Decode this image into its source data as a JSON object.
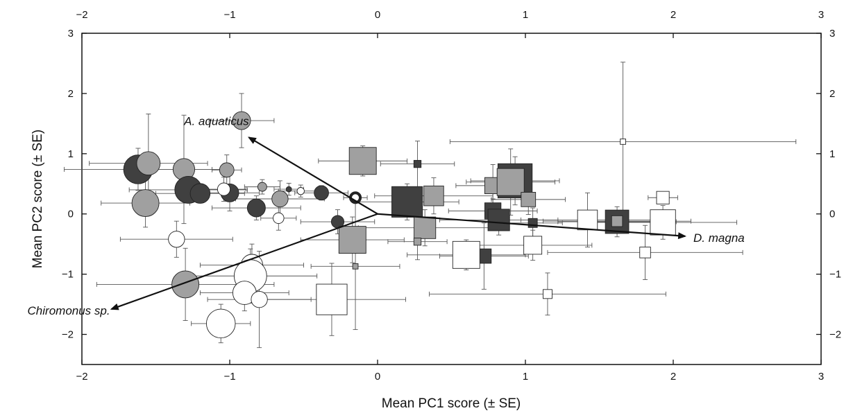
{
  "chart_data": {
    "type": "scatter",
    "xlabel": "Mean PC1 score (± SE)",
    "ylabel": "Mean PC2 score (± SE)",
    "xlim": [
      -2,
      3
    ],
    "ylim": [
      -2.5,
      3
    ],
    "x_ticks": [
      -2,
      -1,
      0,
      1,
      2,
      3
    ],
    "y_ticks": [
      -2,
      -1,
      0,
      1,
      2,
      3
    ],
    "x_tick_labels": [
      "−2",
      "−1",
      "0",
      "1",
      "2",
      "3"
    ],
    "y_tick_labels": [
      "−2",
      "−1",
      "0",
      "1",
      "2",
      "3"
    ],
    "grid": false,
    "colors": {
      "dark": "#404040",
      "grey": "#a0a0a0",
      "white": "#ffffff",
      "stroke": "#222222"
    },
    "vectors": [
      {
        "label": "A. aquaticus",
        "x": -0.87,
        "y": 1.27
      },
      {
        "label": "Chiromonus sp.",
        "x": -1.8,
        "y": -1.58
      },
      {
        "label": "D. magna",
        "x": 2.08,
        "y": -0.37
      }
    ],
    "points": [
      {
        "shape": "circle",
        "fill": "grey",
        "x": -0.92,
        "y": 1.55,
        "size": 0.5,
        "xerr": 0.22,
        "yerr": 0.45
      },
      {
        "shape": "circle",
        "fill": "dark",
        "x": -1.62,
        "y": 0.74,
        "size": 0.8,
        "xerr": 0.5,
        "yerr": 0.35
      },
      {
        "shape": "circle",
        "fill": "grey",
        "x": -1.55,
        "y": 0.84,
        "size": 0.65,
        "xerr": 0.4,
        "yerr": 0.82
      },
      {
        "shape": "circle",
        "fill": "grey",
        "x": -1.31,
        "y": 0.74,
        "size": 0.6,
        "xerr": 0.25,
        "yerr": 0.9
      },
      {
        "shape": "circle",
        "fill": "grey",
        "x": -1.02,
        "y": 0.73,
        "size": 0.4,
        "xerr": 0.1,
        "yerr": 0.25
      },
      {
        "shape": "circle",
        "fill": "grey",
        "x": -1.57,
        "y": 0.18,
        "size": 0.75,
        "xerr": 0.3,
        "yerr": 0.4
      },
      {
        "shape": "circle",
        "fill": "dark",
        "x": -1.28,
        "y": 0.4,
        "size": 0.75,
        "xerr": 0.4,
        "yerr": 0.2
      },
      {
        "shape": "circle",
        "fill": "dark",
        "x": -1.2,
        "y": 0.34,
        "size": 0.55,
        "xerr": 0.3,
        "yerr": 0.15
      },
      {
        "shape": "circle",
        "fill": "dark",
        "x": -1.0,
        "y": 0.35,
        "size": 0.5,
        "xerr": 0.2,
        "yerr": 0.3
      },
      {
        "shape": "circle",
        "fill": "white",
        "x": -1.04,
        "y": 0.41,
        "size": 0.35,
        "xerr": 0.15,
        "yerr": 0.2
      },
      {
        "shape": "circle",
        "fill": "grey",
        "x": -0.78,
        "y": 0.45,
        "size": 0.25,
        "xerr": 0.12,
        "yerr": 0.12
      },
      {
        "shape": "circle",
        "fill": "dark",
        "x": -0.6,
        "y": 0.41,
        "size": 0.15,
        "xerr": 0.1,
        "yerr": 0.1
      },
      {
        "shape": "circle",
        "fill": "white",
        "x": -0.52,
        "y": 0.38,
        "size": 0.2,
        "xerr": 0.15,
        "yerr": 0.1
      },
      {
        "shape": "circle",
        "fill": "dark",
        "x": -0.38,
        "y": 0.35,
        "size": 0.4,
        "xerr": 0.18,
        "yerr": 0.12
      },
      {
        "shape": "circle",
        "fill": "grey",
        "x": -0.66,
        "y": 0.25,
        "size": 0.45,
        "xerr": 0.3,
        "yerr": 0.3
      },
      {
        "shape": "circle",
        "fill": "dark",
        "x": -0.82,
        "y": 0.1,
        "size": 0.5,
        "xerr": 0.3,
        "yerr": 0.2
      },
      {
        "shape": "circle",
        "fill": "white",
        "x": -0.67,
        "y": -0.07,
        "size": 0.3,
        "xerr": 0.12,
        "yerr": 0.2
      },
      {
        "shape": "circle",
        "fill": "dark",
        "x": -0.27,
        "y": -0.13,
        "size": 0.35,
        "xerr": 0.25,
        "yerr": 0.2
      },
      {
        "shape": "circle",
        "fill": "white",
        "x": -0.15,
        "y": 0.27,
        "size": 0.27,
        "ring": true,
        "xerr": 0.08,
        "yerr": 0.08
      },
      {
        "shape": "circle",
        "fill": "white",
        "x": -1.36,
        "y": -0.42,
        "size": 0.45,
        "xerr": 0.38,
        "yerr": 0.3
      },
      {
        "shape": "circle",
        "fill": "white",
        "x": -0.85,
        "y": -0.85,
        "size": 0.6,
        "xerr": 0.35,
        "yerr": 0.35
      },
      {
        "shape": "circle",
        "fill": "grey",
        "x": -1.3,
        "y": -1.17,
        "size": 0.75,
        "xerr": 0.6,
        "yerr": 0.6
      },
      {
        "shape": "circle",
        "fill": "white",
        "x": -0.86,
        "y": -1.03,
        "size": 0.9,
        "xerr": 0.45,
        "yerr": 0.45
      },
      {
        "shape": "circle",
        "fill": "white",
        "x": -0.9,
        "y": -1.31,
        "size": 0.65,
        "xerr": 0.3,
        "yerr": 0.3
      },
      {
        "shape": "circle",
        "fill": "white",
        "x": -0.8,
        "y": -1.42,
        "size": 0.45,
        "xerr": 0.35,
        "yerr": 0.8
      },
      {
        "shape": "circle",
        "fill": "white",
        "x": -1.06,
        "y": -1.82,
        "size": 0.8,
        "xerr": 0.2,
        "yerr": 0.32
      },
      {
        "shape": "square",
        "fill": "grey",
        "x": -0.1,
        "y": 0.88,
        "size": 0.75,
        "xerr": 0.3,
        "yerr": 0.25
      },
      {
        "shape": "square",
        "fill": "dark",
        "x": 0.27,
        "y": 0.83,
        "size": 0.2,
        "xerr": 0.25,
        "yerr": 0.38
      },
      {
        "shape": "square",
        "fill": "dark",
        "x": 0.2,
        "y": 0.2,
        "size": 0.85,
        "xerr": 0.35,
        "yerr": 0.3
      },
      {
        "shape": "square",
        "fill": "grey",
        "x": 0.38,
        "y": 0.3,
        "size": 0.55,
        "xerr": 0.4,
        "yerr": 0.3
      },
      {
        "shape": "square",
        "fill": "grey",
        "x": 0.32,
        "y": -0.23,
        "size": 0.6,
        "xerr": 0.45,
        "yerr": 0.3
      },
      {
        "shape": "square",
        "fill": "grey",
        "x": -0.17,
        "y": -0.43,
        "size": 0.75,
        "xerr": 0.35,
        "yerr": 0.38
      },
      {
        "shape": "square",
        "fill": "grey",
        "x": 0.27,
        "y": -0.46,
        "size": 0.2,
        "xerr": 0.2,
        "yerr": 0.3
      },
      {
        "shape": "square",
        "fill": "grey",
        "x": -0.15,
        "y": -0.87,
        "size": 0.15,
        "xerr": 0.3,
        "yerr": 1.05
      },
      {
        "shape": "square",
        "fill": "dark",
        "x": 0.72,
        "y": -0.7,
        "size": 0.4,
        "xerr": 0.3,
        "yerr": 0.55
      },
      {
        "shape": "square",
        "fill": "white",
        "x": 0.6,
        "y": -0.68,
        "size": 0.75,
        "xerr": 0.4,
        "yerr": 0.25
      },
      {
        "shape": "square",
        "fill": "white",
        "x": -0.31,
        "y": -1.42,
        "size": 0.85,
        "xerr": 0.5,
        "yerr": 0.6
      },
      {
        "shape": "square",
        "fill": "dark",
        "x": 0.78,
        "y": 0.05,
        "size": 0.45,
        "xerr": 0.3,
        "yerr": 0.2
      },
      {
        "shape": "square",
        "fill": "dark",
        "x": 0.82,
        "y": -0.1,
        "size": 0.6,
        "xerr": 0.4,
        "yerr": 0.25
      },
      {
        "shape": "square",
        "fill": "dark",
        "x": 1.05,
        "y": -0.15,
        "size": 0.25,
        "xerr": 0.2,
        "yerr": 0.25
      },
      {
        "shape": "square",
        "fill": "dark",
        "x": 0.93,
        "y": 0.55,
        "size": 0.95,
        "xerr": 0.3,
        "yerr": 0.4
      },
      {
        "shape": "square",
        "fill": "grey",
        "x": 0.78,
        "y": 0.47,
        "size": 0.45,
        "xerr": 0.25,
        "yerr": 0.35
      },
      {
        "shape": "square",
        "fill": "grey",
        "x": 0.9,
        "y": 0.53,
        "size": 0.75,
        "xerr": 0.3,
        "yerr": 0.55
      },
      {
        "shape": "square",
        "fill": "grey",
        "x": 1.02,
        "y": 0.24,
        "size": 0.4,
        "xerr": 0.25,
        "yerr": 0.25
      },
      {
        "shape": "square",
        "fill": "white",
        "x": 1.05,
        "y": -0.52,
        "size": 0.5,
        "xerr": 0.4,
        "yerr": 0.25
      },
      {
        "shape": "square",
        "fill": "white",
        "x": 1.42,
        "y": -0.1,
        "size": 0.55,
        "xerr": 0.45,
        "yerr": 0.45
      },
      {
        "shape": "square",
        "fill": "dark",
        "x": 1.62,
        "y": -0.13,
        "size": 0.65,
        "xerr": 0.4,
        "yerr": 0.25
      },
      {
        "shape": "square",
        "fill": "grey",
        "x": 1.62,
        "y": -0.12,
        "size": 0.3,
        "xerr": 0.5,
        "yerr": 0.1
      },
      {
        "shape": "square",
        "fill": "white",
        "x": 1.66,
        "y": 1.2,
        "size": 0.15,
        "xerr": 1.17,
        "yerr": 1.32
      },
      {
        "shape": "square",
        "fill": "white",
        "x": 1.93,
        "y": -0.14,
        "size": 0.7,
        "xerr": 0.5,
        "yerr": 0.28
      },
      {
        "shape": "square",
        "fill": "white",
        "x": 1.93,
        "y": 0.27,
        "size": 0.35,
        "xerr": 0.1,
        "yerr": 0.1
      },
      {
        "shape": "square",
        "fill": "white",
        "x": 1.81,
        "y": -0.64,
        "size": 0.3,
        "xerr": 0.66,
        "yerr": 0.45
      },
      {
        "shape": "square",
        "fill": "white",
        "x": 1.15,
        "y": -1.33,
        "size": 0.25,
        "xerr": 0.8,
        "yerr": 0.35
      }
    ]
  }
}
